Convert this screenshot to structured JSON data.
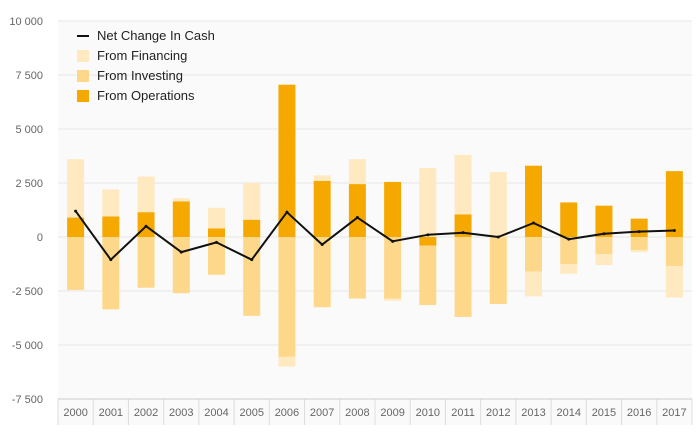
{
  "chart_data": {
    "type": "bar",
    "stacked": true,
    "categories": [
      "2000",
      "2001",
      "2002",
      "2003",
      "2004",
      "2005",
      "2006",
      "2007",
      "2008",
      "2009",
      "2010",
      "2011",
      "2012",
      "2013",
      "2014",
      "2015",
      "2016",
      "2017"
    ],
    "ylim": [
      -7500,
      10000
    ],
    "yticks": [
      -7500,
      -5000,
      -2500,
      0,
      2500,
      5000,
      7500,
      10000
    ],
    "ytick_labels": [
      "-7 500",
      "-5 000",
      "-2 500",
      "0",
      "2 500",
      "5 000",
      "7 500",
      "10 000"
    ],
    "series": [
      {
        "name": "From Operations",
        "color": "#f5a800",
        "values": [
          900,
          950,
          1150,
          1650,
          400,
          800,
          7050,
          2600,
          2450,
          2550,
          -400,
          1050,
          0,
          3300,
          1600,
          1450,
          850,
          3050
        ]
      },
      {
        "name": "From Investing",
        "color": "#fdd88a",
        "values": [
          -2450,
          -3350,
          -2350,
          -2600,
          -1750,
          -3650,
          -5550,
          -3250,
          -2850,
          -2850,
          -2750,
          -3700,
          -3100,
          -1600,
          -1250,
          -800,
          -600,
          -1350
        ]
      },
      {
        "name": "From Financing",
        "color": "#fee9c0",
        "values": [
          2700,
          1250,
          1650,
          150,
          950,
          1700,
          -450,
          250,
          1150,
          -100,
          3200,
          2750,
          3000,
          -1150,
          -450,
          -500,
          -100,
          -1450
        ]
      }
    ],
    "line": {
      "name": "Net Change In Cash",
      "color": "#111111",
      "values": [
        1200,
        -1050,
        500,
        -700,
        -250,
        -1050,
        1150,
        -350,
        900,
        -200,
        100,
        200,
        0,
        650,
        -100,
        150,
        250,
        300
      ]
    },
    "legend": {
      "position": "top-left",
      "items": [
        {
          "label": "Net Change In Cash",
          "type": "line",
          "color": "#111111"
        },
        {
          "label": "From Financing",
          "type": "box",
          "color": "#fee9c0"
        },
        {
          "label": "From Investing",
          "type": "box",
          "color": "#fdd88a"
        },
        {
          "label": "From Operations",
          "type": "box",
          "color": "#f5a800"
        }
      ]
    },
    "grid": true
  }
}
